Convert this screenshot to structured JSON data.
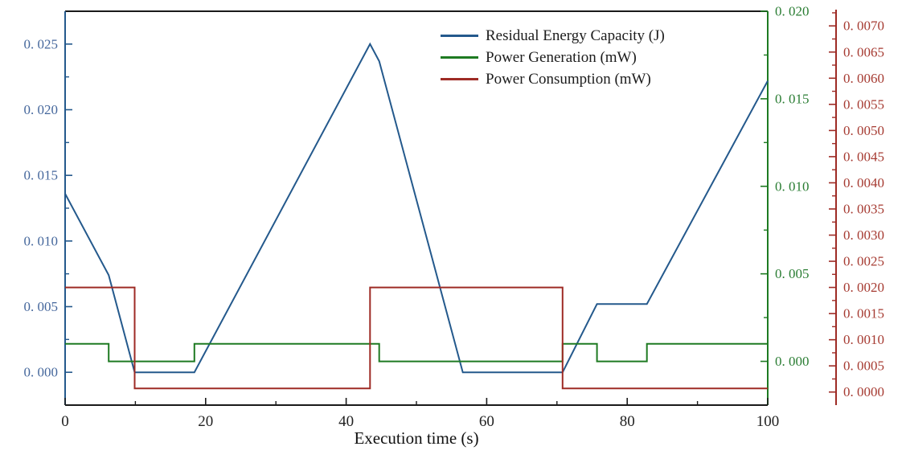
{
  "chart_data": {
    "type": "line",
    "title": "",
    "xlabel": "Execution time (s)",
    "ylabel": "",
    "xlim": [
      0,
      100
    ],
    "x_axis": {
      "tick_values": [
        0,
        20,
        40,
        60,
        80,
        100
      ],
      "tick_labels": [
        "0",
        "20",
        "40",
        "60",
        "80",
        "100"
      ],
      "minor_tick_values": [
        10,
        30,
        50,
        70,
        90
      ],
      "label_color": "#222222",
      "spine_color": "#1a1a1a"
    },
    "grid": false,
    "legend_position": "upper center-right, no frame",
    "axes": {
      "left": {
        "lim": [
          -0.0025,
          0.0275
        ],
        "tick_values": [
          0.0,
          0.005,
          0.01,
          0.015,
          0.02,
          0.025
        ],
        "tick_labels": [
          "0. 000",
          "0. 005",
          "0. 010",
          "0. 015",
          "0. 020",
          "0. 025"
        ],
        "minor_tick_values": [
          0.0025,
          0.0075,
          0.0125,
          0.0175,
          0.0225
        ],
        "color": "#24598c",
        "label_color": "#45679c"
      },
      "green": {
        "lim": [
          -0.0025,
          0.02
        ],
        "tick_values": [
          0.0,
          0.005,
          0.01,
          0.015,
          0.02
        ],
        "tick_labels": [
          "0. 000",
          "0. 005",
          "0. 010",
          "0. 015",
          "0. 020"
        ],
        "minor_tick_values": [
          0.0025,
          0.0075,
          0.0125,
          0.0175
        ],
        "color": "#1e7a22",
        "label_color": "#2a7d33"
      },
      "red": {
        "lim": [
          -0.00025,
          0.00728
        ],
        "tick_values": [
          0.0,
          0.0005,
          0.001,
          0.0015,
          0.002,
          0.0025,
          0.003,
          0.0035,
          0.004,
          0.0045,
          0.005,
          0.0055,
          0.006,
          0.0065,
          0.007
        ],
        "tick_labels": [
          "0. 0000",
          "0. 0005",
          "0. 0010",
          "0. 0015",
          "0. 0020",
          "0. 0025",
          "0. 0030",
          "0. 0035",
          "0. 0040",
          "0. 0045",
          "0. 0050",
          "0. 0055",
          "0. 0060",
          "0. 0065",
          "0. 0070"
        ],
        "minor_tick_values": [
          0.00025,
          0.00075,
          0.00125,
          0.00175,
          0.00225,
          0.00275,
          0.00325,
          0.00375,
          0.00425,
          0.00475,
          0.00525,
          0.00575,
          0.00625,
          0.00675,
          0.00725
        ],
        "color": "#9e2b25",
        "label_color": "#a63b32"
      }
    },
    "series": [
      {
        "name": "Residual Energy Capacity (J)",
        "axis": "left",
        "color": "#24598c",
        "points": [
          [
            0,
            0.0136
          ],
          [
            6.2,
            0.0074
          ],
          [
            9.9,
            0.0
          ],
          [
            18.4,
            0.0
          ],
          [
            43.4,
            0.025
          ],
          [
            44.7,
            0.0237
          ],
          [
            56.6,
            0.0
          ],
          [
            70.8,
            0.0
          ],
          [
            75.7,
            0.0052
          ],
          [
            82.8,
            0.0052
          ],
          [
            100,
            0.0222
          ]
        ]
      },
      {
        "name": "Power Generation (mW)",
        "axis": "green",
        "color": "#1e7a22",
        "points": [
          [
            0,
            0.001
          ],
          [
            6.2,
            0.001
          ],
          [
            6.2,
            0.0
          ],
          [
            18.4,
            0.0
          ],
          [
            18.4,
            0.001
          ],
          [
            44.7,
            0.001
          ],
          [
            44.7,
            0.0
          ],
          [
            70.8,
            0.0
          ],
          [
            70.8,
            0.001
          ],
          [
            75.7,
            0.001
          ],
          [
            75.7,
            0.0
          ],
          [
            82.8,
            0.0
          ],
          [
            82.8,
            0.001
          ],
          [
            100,
            0.001
          ]
        ]
      },
      {
        "name": "Power Consumption (mW)",
        "axis": "red",
        "color": "#9e2b25",
        "points": [
          [
            0,
            0.002
          ],
          [
            9.9,
            0.002
          ],
          [
            9.9,
            7e-05
          ],
          [
            43.4,
            7e-05
          ],
          [
            43.4,
            0.002
          ],
          [
            70.8,
            0.002
          ],
          [
            70.8,
            7e-05
          ],
          [
            100,
            7e-05
          ]
        ]
      }
    ]
  }
}
